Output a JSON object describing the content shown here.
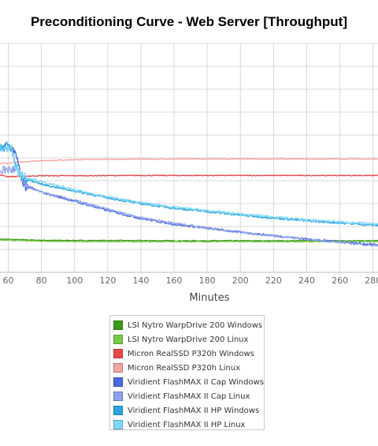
{
  "chart_data": {
    "type": "line",
    "title": "Preconditioning Curve - Web Server [Throughput]",
    "xlabel": "Minutes",
    "ylabel": "",
    "xlim": [
      55,
      283
    ],
    "ylim": [
      0,
      100
    ],
    "x_ticks": [
      "60",
      "80",
      "100",
      "120",
      "140",
      "160",
      "180",
      "200",
      "220",
      "240",
      "260",
      "280"
    ],
    "grid": true,
    "legend_position": "bottom",
    "series": [
      {
        "name": "LSI Nytro WarpDrive 200 Windows",
        "color": "#3a9a1a",
        "x": [
          55,
          60,
          80,
          100,
          120,
          160,
          200,
          240,
          283
        ],
        "y": [
          14.5,
          14.4,
          14.0,
          13.9,
          13.9,
          13.8,
          13.8,
          13.8,
          13.8
        ]
      },
      {
        "name": "LSI Nytro WarpDrive 200 Linux",
        "color": "#7cc84a",
        "x": [
          55,
          60,
          80,
          100,
          120,
          160,
          200,
          240,
          283
        ],
        "y": [
          14.0,
          14.0,
          13.6,
          13.4,
          13.4,
          13.4,
          13.4,
          13.4,
          13.4
        ]
      },
      {
        "name": "Micron RealSSD P320h Windows",
        "color": "#e84848",
        "x": [
          55,
          60,
          70,
          80,
          100,
          140,
          200,
          283
        ],
        "y": [
          42.5,
          41.8,
          42.0,
          42.2,
          42.2,
          42.3,
          42.3,
          42.3
        ]
      },
      {
        "name": "Micron RealSSD P320h Linux",
        "color": "#f4a3a3",
        "x": [
          55,
          60,
          70,
          80,
          100,
          120,
          160,
          200,
          283
        ],
        "y": [
          47.5,
          47.7,
          48.3,
          48.8,
          49.2,
          49.4,
          49.5,
          49.5,
          49.5
        ]
      },
      {
        "name": "Viridient FlashMAX II Cap Windows",
        "color": "#4b6ae0",
        "x": [
          55,
          62,
          64,
          66,
          68,
          70,
          80,
          100,
          120,
          140,
          160,
          200,
          240,
          283
        ],
        "y": [
          54.5,
          54.0,
          51.0,
          49.0,
          39.0,
          38.0,
          35.0,
          31.0,
          27.0,
          23.5,
          21.0,
          17.5,
          14.5,
          12.0
        ]
      },
      {
        "name": "Viridient FlashMAX II Cap Linux",
        "color": "#8ea2ec",
        "x": [
          55,
          62,
          66,
          70,
          80,
          100,
          120,
          140,
          160,
          200,
          240,
          283
        ],
        "y": [
          44.5,
          45.0,
          44.0,
          38.0,
          35.0,
          31.5,
          27.5,
          24.0,
          21.5,
          17.5,
          14.5,
          11.5
        ]
      },
      {
        "name": "Viridient FlashMAX II HP Windows",
        "color": "#2ba5e0",
        "x": [
          55,
          62,
          66,
          70,
          80,
          100,
          120,
          140,
          160,
          200,
          240,
          283
        ],
        "y": [
          55.5,
          54.5,
          43.0,
          41.0,
          38.5,
          35.5,
          32.5,
          30.0,
          28.0,
          25.0,
          22.5,
          20.5
        ]
      },
      {
        "name": "Viridient FlashMAX II HP Linux",
        "color": "#7fd8f8",
        "x": [
          55,
          62,
          66,
          70,
          80,
          100,
          120,
          140,
          160,
          200,
          240,
          283
        ],
        "y": [
          54.5,
          53.5,
          44.0,
          42.0,
          39.5,
          36.0,
          33.0,
          30.5,
          28.5,
          25.5,
          23.0,
          21.0
        ]
      }
    ]
  }
}
